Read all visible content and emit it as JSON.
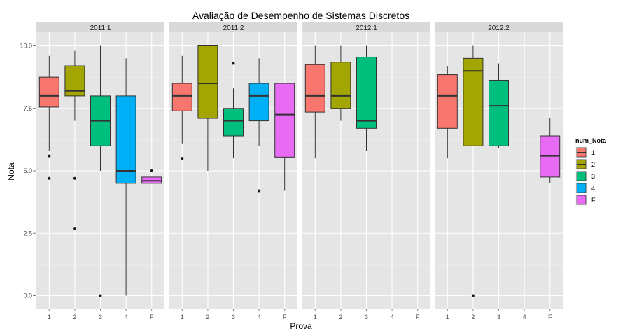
{
  "chart_data": {
    "type": "boxplot",
    "title": "Avaliação de Desempenho de Sistemas Discretos",
    "xlabel": "Prova",
    "ylabel": "Nota",
    "ylim": [
      0,
      10
    ],
    "y_ticks": [
      "0.0",
      "2.5",
      "5.0",
      "7.5",
      "10.0"
    ],
    "categories": [
      "1",
      "2",
      "3",
      "4",
      "F"
    ],
    "legend": {
      "title": "num_Nota",
      "position": "right",
      "entries": [
        {
          "label": "1",
          "color": "#F8766D"
        },
        {
          "label": "2",
          "color": "#A3A500"
        },
        {
          "label": "3",
          "color": "#00BF7D"
        },
        {
          "label": "4",
          "color": "#00B0F6"
        },
        {
          "label": "F",
          "color": "#E76BF3"
        }
      ]
    },
    "grid": true,
    "panels": [
      {
        "label": "2011.1",
        "boxes": [
          {
            "cat": "1",
            "min": 5.8,
            "q1": 7.55,
            "median": 8.0,
            "q3": 8.75,
            "max": 9.6,
            "outliers": [
              5.6,
              4.7
            ]
          },
          {
            "cat": "2",
            "min": 7.0,
            "q1": 8.0,
            "median": 8.2,
            "q3": 9.2,
            "max": 9.8,
            "outliers": [
              4.7,
              2.7
            ]
          },
          {
            "cat": "3",
            "min": 5.0,
            "q1": 6.0,
            "median": 7.0,
            "q3": 8.0,
            "max": 10.0,
            "outliers": [
              0.0
            ]
          },
          {
            "cat": "4",
            "min": 0.0,
            "q1": 4.5,
            "median": 5.0,
            "q3": 8.0,
            "max": 9.5,
            "outliers": []
          },
          {
            "cat": "F",
            "min": 4.5,
            "q1": 4.5,
            "median": 4.6,
            "q3": 4.75,
            "max": 4.75,
            "outliers": [
              5.0
            ]
          }
        ]
      },
      {
        "label": "2011.2",
        "boxes": [
          {
            "cat": "1",
            "min": 6.1,
            "q1": 7.4,
            "median": 8.0,
            "q3": 8.5,
            "max": 9.6,
            "outliers": [
              5.5
            ]
          },
          {
            "cat": "2",
            "min": 5.0,
            "q1": 7.1,
            "median": 8.5,
            "q3": 10.0,
            "max": 10.0,
            "outliers": []
          },
          {
            "cat": "3",
            "min": 5.5,
            "q1": 6.4,
            "median": 7.0,
            "q3": 7.5,
            "max": 8.3,
            "outliers": [
              9.3
            ]
          },
          {
            "cat": "4",
            "min": 6.0,
            "q1": 7.0,
            "median": 8.0,
            "q3": 8.5,
            "max": 9.5,
            "outliers": [
              4.2
            ]
          },
          {
            "cat": "F",
            "min": 4.2,
            "q1": 5.55,
            "median": 7.25,
            "q3": 8.5,
            "max": 8.5,
            "outliers": []
          }
        ]
      },
      {
        "label": "2012.1",
        "boxes": [
          {
            "cat": "1",
            "min": 5.5,
            "q1": 7.35,
            "median": 8.0,
            "q3": 9.25,
            "max": 10.0,
            "outliers": []
          },
          {
            "cat": "2",
            "min": 7.0,
            "q1": 7.5,
            "median": 8.0,
            "q3": 9.35,
            "max": 10.0,
            "outliers": []
          },
          {
            "cat": "3",
            "min": 5.8,
            "q1": 6.7,
            "median": 7.0,
            "q3": 9.55,
            "max": 10.0,
            "outliers": []
          }
        ]
      },
      {
        "label": "2012.2",
        "boxes": [
          {
            "cat": "1",
            "min": 5.5,
            "q1": 6.7,
            "median": 8.0,
            "q3": 8.85,
            "max": 9.2,
            "outliers": []
          },
          {
            "cat": "2",
            "min": 6.0,
            "q1": 6.0,
            "median": 9.0,
            "q3": 9.5,
            "max": 10.0,
            "outliers": [
              0.0
            ]
          },
          {
            "cat": "3",
            "min": 5.9,
            "q1": 6.0,
            "median": 7.6,
            "q3": 8.6,
            "max": 9.3,
            "outliers": []
          },
          {
            "cat": "F",
            "min": 4.5,
            "q1": 4.75,
            "median": 5.6,
            "q3": 6.4,
            "max": 7.1,
            "outliers": []
          }
        ]
      }
    ]
  }
}
